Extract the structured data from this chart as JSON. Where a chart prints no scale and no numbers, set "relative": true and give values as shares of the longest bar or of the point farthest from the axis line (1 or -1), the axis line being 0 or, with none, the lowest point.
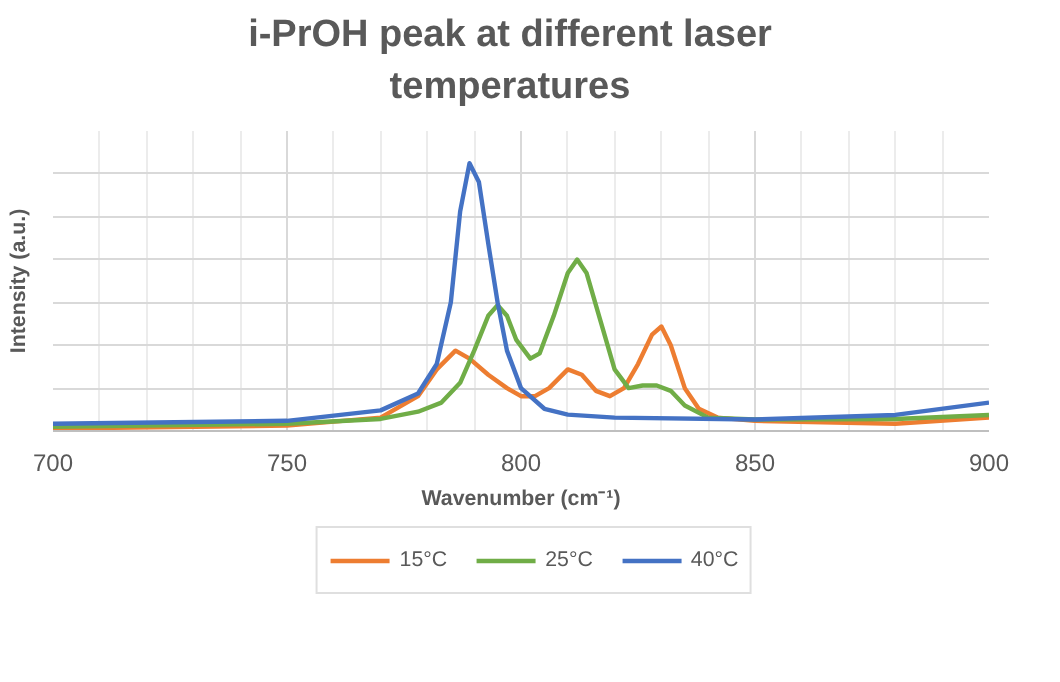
{
  "chart_data": {
    "type": "line",
    "title": "i-PrOH peak at different laser temperatures",
    "xlabel": "Wavenumber (cm⁻¹)",
    "ylabel": "Intensity (a.u.)",
    "relative": true,
    "xlim": [
      700,
      900
    ],
    "xticks": [
      700,
      750,
      800,
      850,
      900
    ],
    "grid": true,
    "legend": "bottom",
    "marker": "none",
    "line_style": "solid",
    "series": [
      {
        "name": "15°C",
        "color": "#ed7d31",
        "x": [
          700,
          750,
          770,
          778,
          782,
          786,
          789,
          793,
          797,
          800,
          803,
          806,
          810,
          813,
          816,
          819,
          822,
          825,
          828,
          830,
          832,
          835,
          838,
          842,
          850,
          880,
          900
        ],
        "values": [
          0.009,
          0.02,
          0.05,
          0.13,
          0.23,
          0.3,
          0.27,
          0.21,
          0.16,
          0.13,
          0.13,
          0.16,
          0.23,
          0.21,
          0.15,
          0.13,
          0.16,
          0.25,
          0.36,
          0.39,
          0.32,
          0.16,
          0.083,
          0.05,
          0.038,
          0.027,
          0.05
        ]
      },
      {
        "name": "25°C",
        "color": "#70ad47",
        "x": [
          700,
          750,
          770,
          778,
          783,
          787,
          790,
          793,
          795,
          797,
          799,
          802,
          804,
          807,
          810,
          812,
          814,
          817,
          820,
          823,
          826,
          829,
          832,
          835,
          840,
          850,
          880,
          900
        ],
        "values": [
          0.016,
          0.027,
          0.045,
          0.072,
          0.106,
          0.18,
          0.3,
          0.43,
          0.47,
          0.43,
          0.34,
          0.27,
          0.29,
          0.43,
          0.59,
          0.64,
          0.59,
          0.41,
          0.23,
          0.16,
          0.17,
          0.17,
          0.15,
          0.095,
          0.05,
          0.043,
          0.045,
          0.06
        ]
      },
      {
        "name": "40°C",
        "color": "#4472c4",
        "x": [
          700,
          750,
          770,
          778,
          782,
          785,
          787,
          789,
          791,
          793,
          795,
          797,
          800,
          805,
          810,
          820,
          850,
          880,
          900
        ],
        "values": [
          0.027,
          0.038,
          0.077,
          0.14,
          0.25,
          0.48,
          0.82,
          1.0,
          0.93,
          0.7,
          0.48,
          0.3,
          0.16,
          0.083,
          0.061,
          0.05,
          0.043,
          0.06,
          0.106
        ]
      }
    ]
  }
}
